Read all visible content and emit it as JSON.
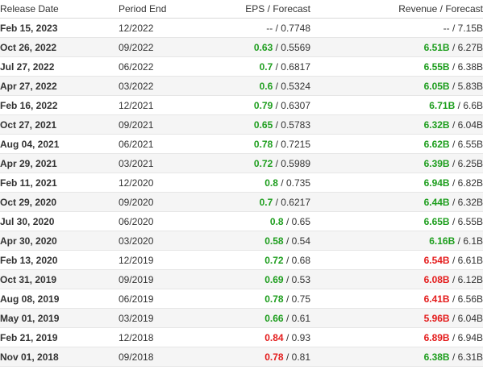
{
  "colors": {
    "positive": "#1e9e1e",
    "negative": "#e41c1c",
    "neutral": "#333333"
  },
  "header": {
    "release_date": "Release Date",
    "period_end": "Period End",
    "eps": "EPS",
    "eps_sep": "/",
    "eps_forecast": "Forecast",
    "revenue": "Revenue",
    "revenue_sep": "/",
    "revenue_forecast": "Forecast"
  },
  "rows": [
    {
      "date": "Feb 15, 2023",
      "period": "12/2022",
      "eps": "--",
      "eps_status": "neutral",
      "eps_fc": "0.7748",
      "rev": "--",
      "rev_status": "neutral",
      "rev_fc": "7.15B"
    },
    {
      "date": "Oct 26, 2022",
      "period": "09/2022",
      "eps": "0.63",
      "eps_status": "positive",
      "eps_fc": "0.5569",
      "rev": "6.51B",
      "rev_status": "positive",
      "rev_fc": "6.27B"
    },
    {
      "date": "Jul 27, 2022",
      "period": "06/2022",
      "eps": "0.7",
      "eps_status": "positive",
      "eps_fc": "0.6817",
      "rev": "6.55B",
      "rev_status": "positive",
      "rev_fc": "6.38B"
    },
    {
      "date": "Apr 27, 2022",
      "period": "03/2022",
      "eps": "0.6",
      "eps_status": "positive",
      "eps_fc": "0.5324",
      "rev": "6.05B",
      "rev_status": "positive",
      "rev_fc": "5.83B"
    },
    {
      "date": "Feb 16, 2022",
      "period": "12/2021",
      "eps": "0.79",
      "eps_status": "positive",
      "eps_fc": "0.6307",
      "rev": "6.71B",
      "rev_status": "positive",
      "rev_fc": "6.6B"
    },
    {
      "date": "Oct 27, 2021",
      "period": "09/2021",
      "eps": "0.65",
      "eps_status": "positive",
      "eps_fc": "0.5783",
      "rev": "6.32B",
      "rev_status": "positive",
      "rev_fc": "6.04B"
    },
    {
      "date": "Aug 04, 2021",
      "period": "06/2021",
      "eps": "0.78",
      "eps_status": "positive",
      "eps_fc": "0.7215",
      "rev": "6.62B",
      "rev_status": "positive",
      "rev_fc": "6.55B"
    },
    {
      "date": "Apr 29, 2021",
      "period": "03/2021",
      "eps": "0.72",
      "eps_status": "positive",
      "eps_fc": "0.5989",
      "rev": "6.39B",
      "rev_status": "positive",
      "rev_fc": "6.25B"
    },
    {
      "date": "Feb 11, 2021",
      "period": "12/2020",
      "eps": "0.8",
      "eps_status": "positive",
      "eps_fc": "0.735",
      "rev": "6.94B",
      "rev_status": "positive",
      "rev_fc": "6.82B"
    },
    {
      "date": "Oct 29, 2020",
      "period": "09/2020",
      "eps": "0.7",
      "eps_status": "positive",
      "eps_fc": "0.6217",
      "rev": "6.44B",
      "rev_status": "positive",
      "rev_fc": "6.32B"
    },
    {
      "date": "Jul 30, 2020",
      "period": "06/2020",
      "eps": "0.8",
      "eps_status": "positive",
      "eps_fc": "0.65",
      "rev": "6.65B",
      "rev_status": "positive",
      "rev_fc": "6.55B"
    },
    {
      "date": "Apr 30, 2020",
      "period": "03/2020",
      "eps": "0.58",
      "eps_status": "positive",
      "eps_fc": "0.54",
      "rev": "6.16B",
      "rev_status": "positive",
      "rev_fc": "6.1B"
    },
    {
      "date": "Feb 13, 2020",
      "period": "12/2019",
      "eps": "0.72",
      "eps_status": "positive",
      "eps_fc": "0.68",
      "rev": "6.54B",
      "rev_status": "negative",
      "rev_fc": "6.61B"
    },
    {
      "date": "Oct 31, 2019",
      "period": "09/2019",
      "eps": "0.69",
      "eps_status": "positive",
      "eps_fc": "0.53",
      "rev": "6.08B",
      "rev_status": "negative",
      "rev_fc": "6.12B"
    },
    {
      "date": "Aug 08, 2019",
      "period": "06/2019",
      "eps": "0.78",
      "eps_status": "positive",
      "eps_fc": "0.75",
      "rev": "6.41B",
      "rev_status": "negative",
      "rev_fc": "6.56B"
    },
    {
      "date": "May 01, 2019",
      "period": "03/2019",
      "eps": "0.66",
      "eps_status": "positive",
      "eps_fc": "0.61",
      "rev": "5.96B",
      "rev_status": "negative",
      "rev_fc": "6.04B"
    },
    {
      "date": "Feb 21, 2019",
      "period": "12/2018",
      "eps": "0.84",
      "eps_status": "negative",
      "eps_fc": "0.93",
      "rev": "6.89B",
      "rev_status": "negative",
      "rev_fc": "6.94B"
    },
    {
      "date": "Nov 01, 2018",
      "period": "09/2018",
      "eps": "0.78",
      "eps_status": "negative",
      "eps_fc": "0.81",
      "rev": "6.38B",
      "rev_status": "positive",
      "rev_fc": "6.31B"
    }
  ]
}
